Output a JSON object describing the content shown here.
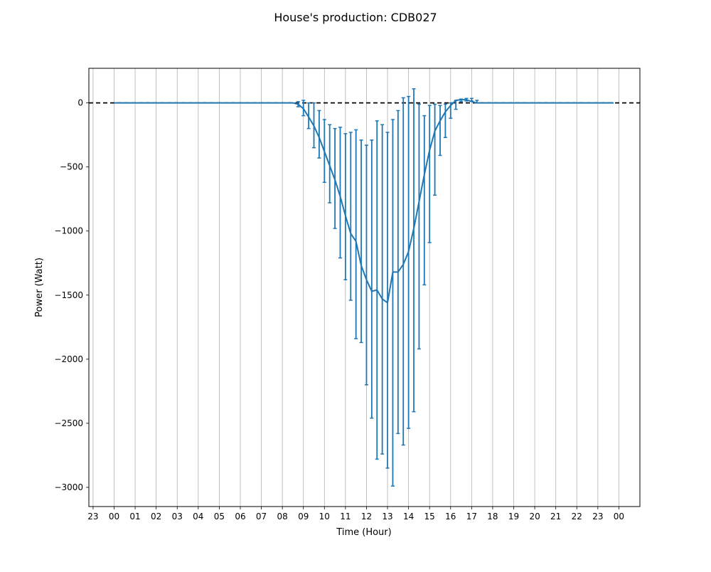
{
  "figure": {
    "title": "House's production: CDB027"
  },
  "chart_data": {
    "type": "line",
    "title": "House's production: CDB027",
    "xlabel": "Time (Hour)",
    "ylabel": "Power (Watt)",
    "x_tick_labels": [
      "23",
      "00",
      "01",
      "02",
      "03",
      "04",
      "05",
      "06",
      "07",
      "08",
      "09",
      "10",
      "11",
      "12",
      "13",
      "14",
      "15",
      "16",
      "17",
      "18",
      "19",
      "20",
      "21",
      "22",
      "23",
      "00"
    ],
    "x_tick_hours": [
      -1,
      0,
      1,
      2,
      3,
      4,
      5,
      6,
      7,
      8,
      9,
      10,
      11,
      12,
      13,
      14,
      15,
      16,
      17,
      18,
      19,
      20,
      21,
      22,
      23,
      24
    ],
    "y_ticks": [
      0,
      -500,
      -1000,
      -1500,
      -2000,
      -2500,
      -3000
    ],
    "y_tick_labels": [
      "0",
      "−500",
      "−1000",
      "−1500",
      "−2000",
      "−2500",
      "−3000"
    ],
    "xlim": [
      -1.2,
      25.0
    ],
    "ylim": [
      -3150,
      270
    ],
    "grid": "vertical lines at each hour",
    "reference_line": {
      "y": 0,
      "style": "dashed",
      "color": "#000000"
    },
    "series": [
      {
        "color": "#1f77b4",
        "x": [
          0.0,
          0.25,
          0.5,
          0.75,
          1.0,
          1.25,
          1.5,
          1.75,
          2.0,
          2.25,
          2.5,
          2.75,
          3.0,
          3.25,
          3.5,
          3.75,
          4.0,
          4.25,
          4.5,
          4.75,
          5.0,
          5.25,
          5.5,
          5.75,
          6.0,
          6.25,
          6.5,
          6.75,
          7.0,
          7.25,
          7.5,
          7.75,
          8.0,
          8.25,
          8.5,
          8.75,
          9.0,
          9.25,
          9.5,
          9.75,
          10.0,
          10.25,
          10.5,
          10.75,
          11.0,
          11.25,
          11.5,
          11.75,
          12.0,
          12.25,
          12.5,
          12.75,
          13.0,
          13.25,
          13.5,
          13.75,
          14.0,
          14.25,
          14.5,
          14.75,
          15.0,
          15.25,
          15.5,
          15.75,
          16.0,
          16.25,
          16.5,
          16.75,
          17.0,
          17.25,
          17.5,
          17.75,
          18.0,
          18.25,
          18.5,
          18.75,
          19.0,
          19.25,
          19.5,
          19.75,
          20.0,
          20.25,
          20.5,
          20.75,
          21.0,
          21.25,
          21.5,
          21.75,
          22.0,
          22.25,
          22.5,
          22.75,
          23.0,
          23.25,
          23.5,
          23.75
        ],
        "values": [
          0,
          0,
          0,
          0,
          0,
          0,
          0,
          0,
          0,
          0,
          0,
          0,
          0,
          0,
          0,
          0,
          0,
          0,
          0,
          0,
          0,
          0,
          0,
          0,
          0,
          0,
          0,
          0,
          0,
          0,
          0,
          0,
          0,
          0,
          0,
          -10,
          -45,
          -110,
          -180,
          -270,
          -380,
          -490,
          -600,
          -730,
          -880,
          -1020,
          -1080,
          -1270,
          -1380,
          -1470,
          -1460,
          -1530,
          -1560,
          -1320,
          -1320,
          -1260,
          -1160,
          -980,
          -770,
          -560,
          -370,
          -220,
          -140,
          -70,
          -20,
          20,
          25,
          25,
          10,
          0,
          0,
          0,
          0,
          0,
          0,
          0,
          0,
          0,
          0,
          0,
          0,
          0,
          0,
          0,
          0,
          0,
          0,
          0,
          0,
          0,
          0,
          0,
          0,
          0,
          0,
          0
        ],
        "error_bars": [
          {
            "x": 8.75,
            "low": -30,
            "high": 10
          },
          {
            "x": 9.0,
            "low": -100,
            "high": 20
          },
          {
            "x": 9.25,
            "low": -200,
            "high": 0
          },
          {
            "x": 9.5,
            "low": -350,
            "high": 0
          },
          {
            "x": 9.75,
            "low": -430,
            "high": -60
          },
          {
            "x": 10.0,
            "low": -620,
            "high": -130
          },
          {
            "x": 10.25,
            "low": -780,
            "high": -170
          },
          {
            "x": 10.5,
            "low": -980,
            "high": -200
          },
          {
            "x": 10.75,
            "low": -1210,
            "high": -190
          },
          {
            "x": 11.0,
            "low": -1380,
            "high": -240
          },
          {
            "x": 11.25,
            "low": -1540,
            "high": -230
          },
          {
            "x": 11.5,
            "low": -1840,
            "high": -210
          },
          {
            "x": 11.75,
            "low": -1870,
            "high": -290
          },
          {
            "x": 12.0,
            "low": -2200,
            "high": -330
          },
          {
            "x": 12.25,
            "low": -2460,
            "high": -290
          },
          {
            "x": 12.5,
            "low": -2780,
            "high": -140
          },
          {
            "x": 12.75,
            "low": -2740,
            "high": -170
          },
          {
            "x": 13.0,
            "low": -2850,
            "high": -230
          },
          {
            "x": 13.25,
            "low": -2990,
            "high": -130
          },
          {
            "x": 13.5,
            "low": -2580,
            "high": -60
          },
          {
            "x": 13.75,
            "low": -2670,
            "high": 40
          },
          {
            "x": 14.0,
            "low": -2540,
            "high": 50
          },
          {
            "x": 14.25,
            "low": -2410,
            "high": 110
          },
          {
            "x": 14.5,
            "low": -1920,
            "high": -10
          },
          {
            "x": 14.75,
            "low": -1420,
            "high": -100
          },
          {
            "x": 15.0,
            "low": -1090,
            "high": -20
          },
          {
            "x": 15.25,
            "low": -720,
            "high": -10
          },
          {
            "x": 15.5,
            "low": -410,
            "high": -20
          },
          {
            "x": 15.75,
            "low": -270,
            "high": -10
          },
          {
            "x": 16.0,
            "low": -120,
            "high": 0
          },
          {
            "x": 16.25,
            "low": -50,
            "high": 20
          },
          {
            "x": 16.5,
            "low": 10,
            "high": 30
          },
          {
            "x": 16.75,
            "low": 15,
            "high": 35
          },
          {
            "x": 17.0,
            "low": 15,
            "high": 35
          },
          {
            "x": 17.25,
            "low": 0,
            "high": 20
          }
        ]
      }
    ]
  }
}
